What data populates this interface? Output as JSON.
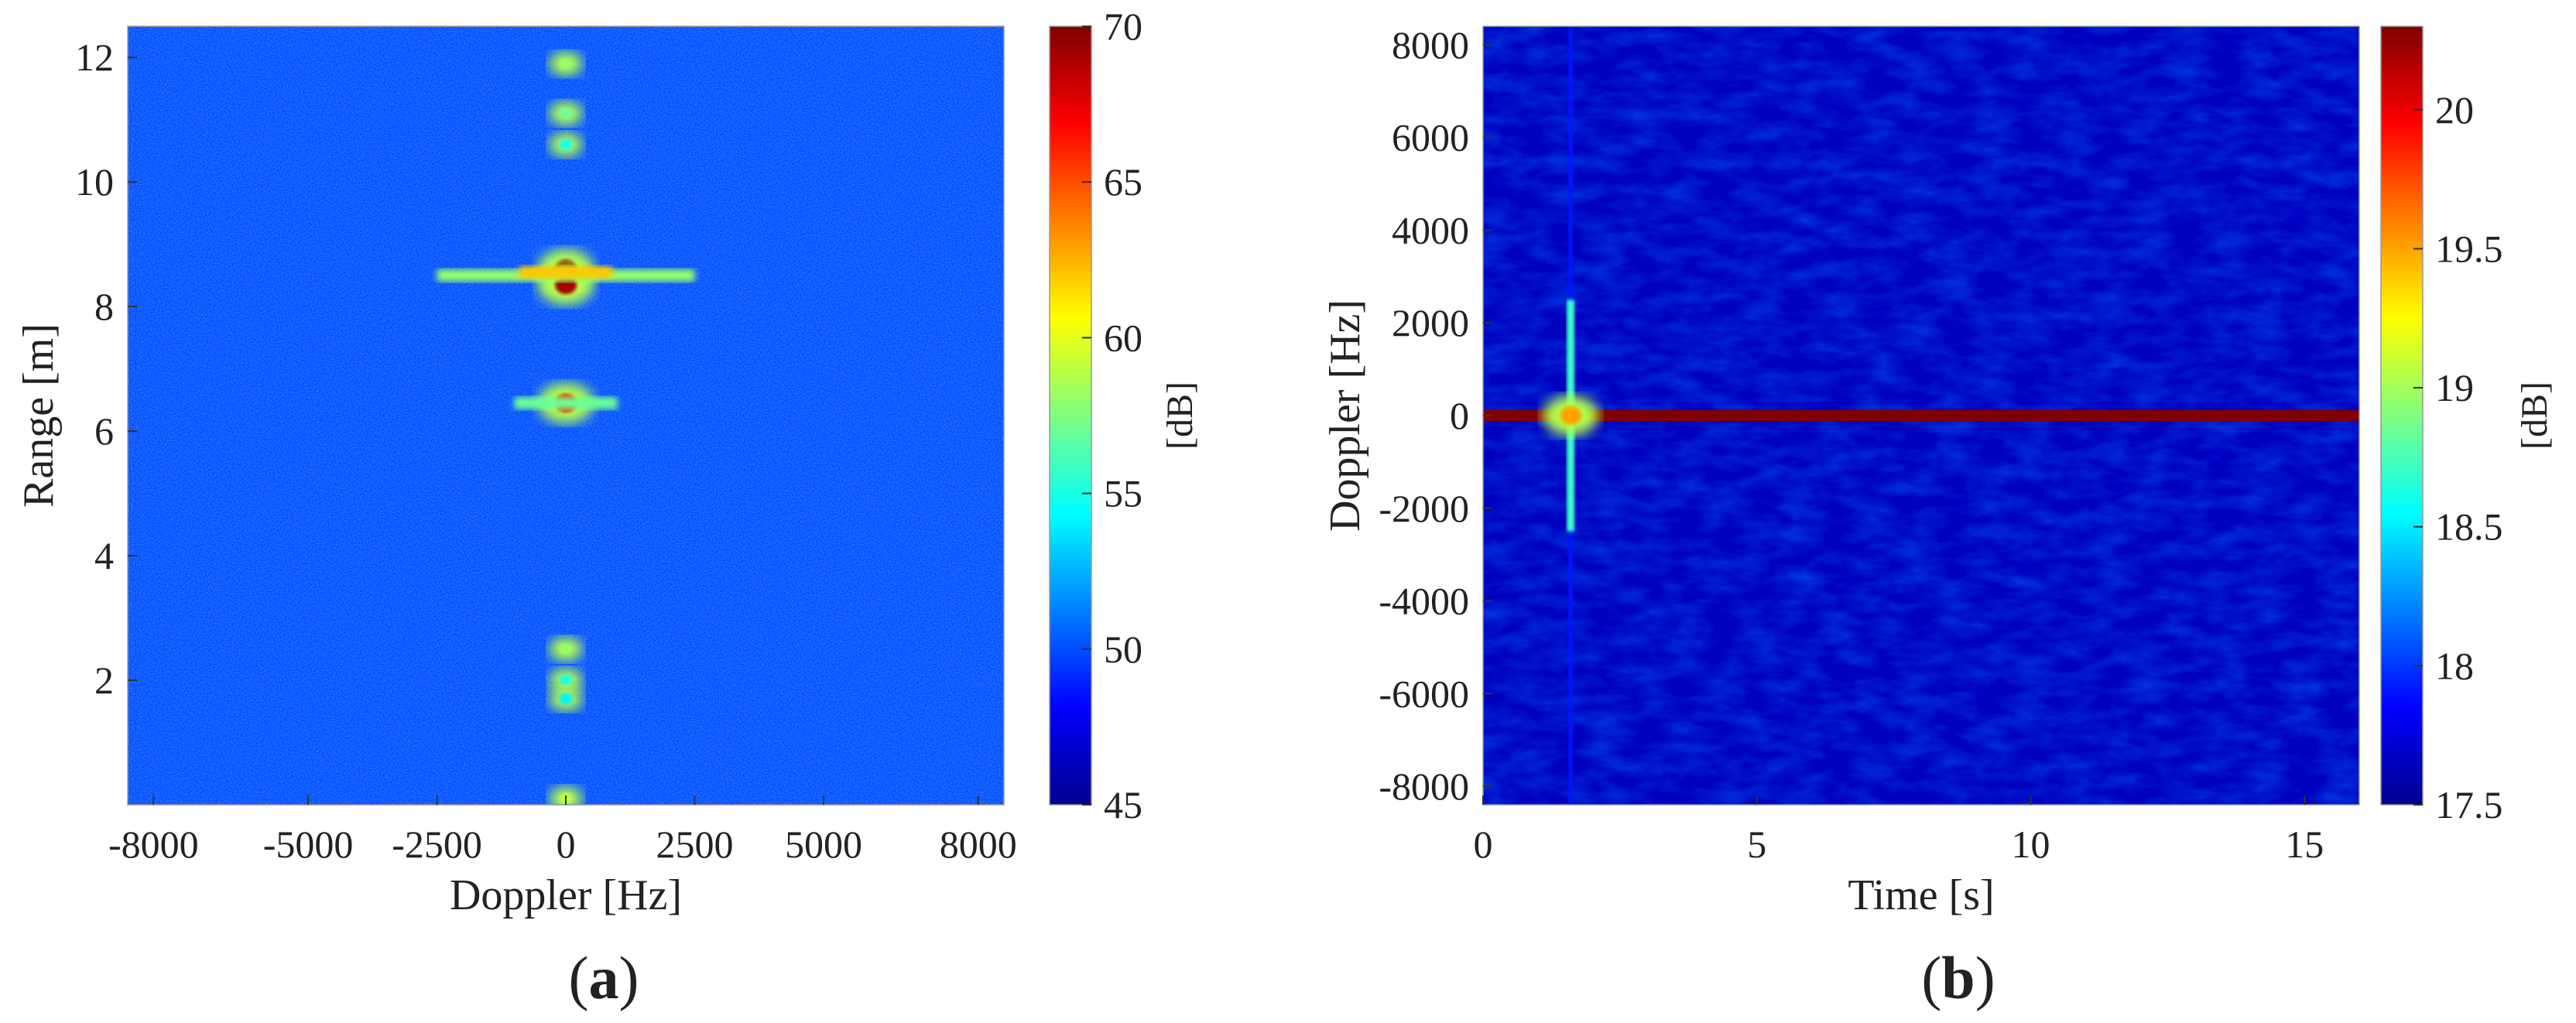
{
  "chart_data": [
    {
      "panel_label": "(a)",
      "panel_letter": "a",
      "type": "heatmap",
      "xlabel": "Doppler [Hz]",
      "ylabel": "Range [m]",
      "xlim": [
        -8500,
        8500
      ],
      "ylim": [
        0,
        12.5
      ],
      "xticks": [
        -8000,
        -5000,
        -2500,
        0,
        2500,
        5000,
        8000
      ],
      "yticks": [
        2,
        4,
        6,
        8,
        10,
        12
      ],
      "colormap": "jet",
      "background_level_db": 50,
      "features": [
        {
          "kind": "vertical_line",
          "x": 0,
          "level_db": 52
        },
        {
          "kind": "blob",
          "x": 0,
          "y": 8.6,
          "level_db": 70
        },
        {
          "kind": "blob",
          "x": 0,
          "y": 8.35,
          "level_db": 69
        },
        {
          "kind": "horizontal_spread",
          "x_from": -2500,
          "x_to": 2500,
          "y": 8.5,
          "level_db": 58
        },
        {
          "kind": "horizontal_spread",
          "x_from": -900,
          "x_to": 900,
          "y": 8.55,
          "level_db": 62
        },
        {
          "kind": "blob",
          "x": 0,
          "y": 6.45,
          "level_db": 66
        },
        {
          "kind": "horizontal_spread",
          "x_from": -1000,
          "x_to": 1000,
          "y": 6.45,
          "level_db": 57
        },
        {
          "kind": "blob",
          "x": 0,
          "y": 11.9,
          "level_db": 58
        },
        {
          "kind": "blob",
          "x": 0,
          "y": 11.1,
          "level_db": 57
        },
        {
          "kind": "blob",
          "x": 0,
          "y": 10.6,
          "level_db": 55
        },
        {
          "kind": "blob",
          "x": 0,
          "y": 2.5,
          "level_db": 58
        },
        {
          "kind": "blob",
          "x": 0,
          "y": 2.0,
          "level_db": 55
        },
        {
          "kind": "blob",
          "x": 0,
          "y": 1.7,
          "level_db": 54
        },
        {
          "kind": "blob",
          "x": 0,
          "y": 0.1,
          "level_db": 59
        }
      ],
      "colorbar": {
        "label": "[dB]",
        "min": 45,
        "max": 70,
        "ticks": [
          45,
          50,
          55,
          60,
          65,
          70
        ]
      }
    },
    {
      "panel_label": "(b)",
      "panel_letter": "b",
      "type": "heatmap",
      "xlabel": "Time [s]",
      "ylabel": "Doppler [Hz]",
      "xlim": [
        0,
        16
      ],
      "ylim": [
        -8400,
        8400
      ],
      "xticks": [
        0,
        5,
        10,
        15
      ],
      "yticks": [
        -8000,
        -6000,
        -4000,
        -2000,
        0,
        2000,
        4000,
        6000,
        8000
      ],
      "colormap": "jet",
      "background_level_db": 17.65,
      "features": [
        {
          "kind": "horizontal_line",
          "y": 0,
          "level_db": 20.3
        },
        {
          "kind": "vertical_streak",
          "x": 1.6,
          "y_from": -8400,
          "y_to": 8400,
          "level_db": 17.9
        },
        {
          "kind": "vertical_streak",
          "x": 1.6,
          "y_from": -2500,
          "y_to": 2500,
          "level_db": 18.7
        },
        {
          "kind": "blob",
          "x": 1.6,
          "y": 0,
          "level_db": 19.5
        }
      ],
      "colorbar": {
        "label": "[dB]",
        "min": 17.5,
        "max": 20.3,
        "ticks": [
          17.5,
          18,
          18.5,
          19,
          19.5,
          20
        ]
      }
    }
  ]
}
